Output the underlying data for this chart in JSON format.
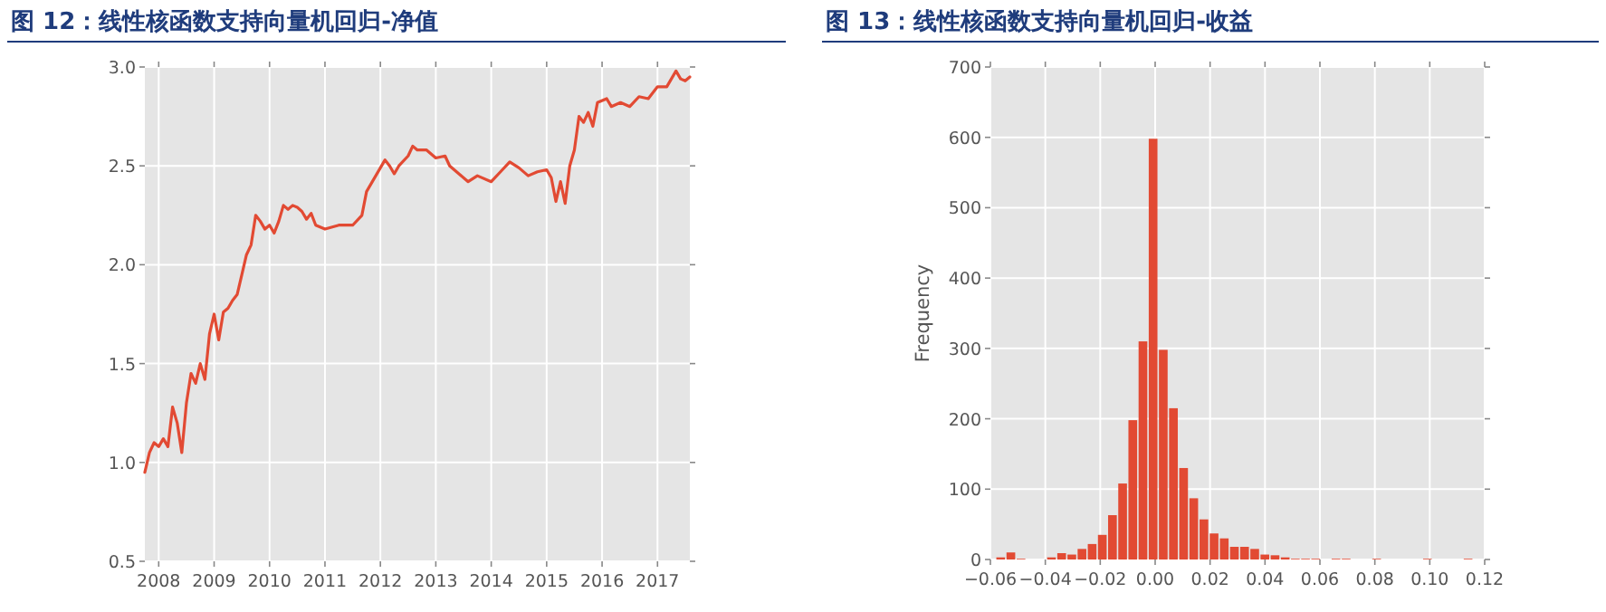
{
  "chart_data": [
    {
      "type": "line",
      "title": "图 12：线性核函数支持向量机回归-净值",
      "grid": true,
      "xlim": [
        "2007-10",
        "2017-08"
      ],
      "ylim": [
        0.5,
        3.0
      ],
      "xticks": [
        "2008",
        "2009",
        "2010",
        "2011",
        "2012",
        "2013",
        "2014",
        "2015",
        "2016",
        "2017"
      ],
      "yticks": [
        {
          "value": 0.5,
          "label": "0.5"
        },
        {
          "value": 1,
          "label": "1.0"
        },
        {
          "value": 1.5,
          "label": "1.5"
        },
        {
          "value": 2,
          "label": "2.0"
        },
        {
          "value": 2.5,
          "label": "2.5"
        },
        {
          "value": 3,
          "label": "3.0"
        }
      ],
      "x": [
        "2007-10",
        "2007-11",
        "2007-12",
        "2008-01",
        "2008-02",
        "2008-03",
        "2008-04",
        "2008-05",
        "2008-06",
        "2008-07",
        "2008-08",
        "2008-09",
        "2008-10",
        "2008-11",
        "2008-12",
        "2009-01",
        "2009-02",
        "2009-03",
        "2009-04",
        "2009-05",
        "2009-06",
        "2009-07",
        "2009-08",
        "2009-09",
        "2009-10",
        "2009-11",
        "2009-12",
        "2010-01",
        "2010-02",
        "2010-03",
        "2010-04",
        "2010-05",
        "2010-06",
        "2010-07",
        "2010-08",
        "2010-09",
        "2010-10",
        "2010-11",
        "2011-01",
        "2011-04",
        "2011-07",
        "2011-09",
        "2011-10",
        "2011-12",
        "2012-02",
        "2012-03",
        "2012-04",
        "2012-05",
        "2012-07",
        "2012-08",
        "2012-09",
        "2012-11",
        "2013-01",
        "2013-03",
        "2013-04",
        "2013-06",
        "2013-08",
        "2013-10",
        "2014-01",
        "2014-03",
        "2014-05",
        "2014-07",
        "2014-09",
        "2014-11",
        "2015-01",
        "2015-02",
        "2015-03",
        "2015-04",
        "2015-05",
        "2015-06",
        "2015-07",
        "2015-08",
        "2015-09",
        "2015-10",
        "2015-11",
        "2015-12",
        "2016-02",
        "2016-03",
        "2016-05",
        "2016-07",
        "2016-09",
        "2016-11",
        "2017-01",
        "2017-03",
        "2017-05",
        "2017-06",
        "2017-07",
        "2017-08"
      ],
      "series": [
        {
          "color": "#e24a33",
          "values": [
            0.95,
            1.05,
            1.1,
            1.08,
            1.12,
            1.08,
            1.28,
            1.2,
            1.05,
            1.3,
            1.45,
            1.4,
            1.5,
            1.42,
            1.65,
            1.75,
            1.62,
            1.76,
            1.78,
            1.82,
            1.85,
            1.95,
            2.05,
            2.1,
            2.25,
            2.22,
            2.18,
            2.2,
            2.16,
            2.22,
            2.3,
            2.28,
            2.3,
            2.29,
            2.27,
            2.23,
            2.26,
            2.2,
            2.18,
            2.2,
            2.2,
            2.25,
            2.37,
            2.45,
            2.53,
            2.5,
            2.46,
            2.5,
            2.55,
            2.6,
            2.58,
            2.58,
            2.54,
            2.55,
            2.5,
            2.46,
            2.42,
            2.45,
            2.42,
            2.47,
            2.52,
            2.49,
            2.45,
            2.47,
            2.48,
            2.44,
            2.32,
            2.42,
            2.31,
            2.5,
            2.58,
            2.75,
            2.72,
            2.77,
            2.7,
            2.82,
            2.84,
            2.8,
            2.82,
            2.8,
            2.85,
            2.84,
            2.9,
            2.9,
            2.98,
            2.94,
            2.93,
            2.95
          ]
        }
      ]
    },
    {
      "type": "histogram",
      "title": "图 13：线性核函数支持向量机回归-收益",
      "ylabel": "Frequency",
      "grid": true,
      "xlim": [
        -0.06,
        0.12
      ],
      "ylim": [
        0,
        700
      ],
      "xticks": [
        {
          "value": -0.06,
          "label": "−0.06"
        },
        {
          "value": -0.04,
          "label": "−0.04"
        },
        {
          "value": -0.02,
          "label": "−0.02"
        },
        {
          "value": 0,
          "label": "0.00"
        },
        {
          "value": 0.02,
          "label": "0.02"
        },
        {
          "value": 0.04,
          "label": "0.04"
        },
        {
          "value": 0.06,
          "label": "0.06"
        },
        {
          "value": 0.08,
          "label": "0.08"
        },
        {
          "value": 0.1,
          "label": "0.10"
        },
        {
          "value": 0.12,
          "label": "0.12"
        }
      ],
      "yticks": [
        0,
        100,
        200,
        300,
        400,
        500,
        600,
        700
      ],
      "bins": [
        -0.0581,
        -0.0544,
        -0.0507,
        -0.047,
        -0.0433,
        -0.0396,
        -0.0359,
        -0.0322,
        -0.0285,
        -0.0248,
        -0.0211,
        -0.0174,
        -0.0137,
        -0.01,
        -0.0063,
        -0.0026,
        0.0011,
        0.0048,
        0.0085,
        0.0122,
        0.0159,
        0.0196,
        0.0233,
        0.027,
        0.0307,
        0.0344,
        0.0381,
        0.0418,
        0.0455,
        0.0492,
        0.0529,
        0.0566,
        0.0603,
        0.064,
        0.0677,
        0.0714,
        0.0751,
        0.0788,
        0.0825,
        0.0862,
        0.0899,
        0.0936,
        0.0973,
        0.101,
        0.1047,
        0.1084,
        0.1121,
        0.1158
      ],
      "series": [
        {
          "color": "#e24a33",
          "values": [
            3,
            10,
            1,
            0,
            0,
            3,
            9,
            7,
            15,
            22,
            35,
            63,
            108,
            198,
            310,
            598,
            298,
            215,
            130,
            87,
            57,
            37,
            30,
            18,
            18,
            15,
            7,
            6,
            3,
            1,
            1,
            1,
            0,
            1,
            1,
            0,
            0,
            1,
            0,
            0,
            0,
            0,
            1,
            0,
            0,
            0,
            1
          ]
        }
      ]
    }
  ]
}
